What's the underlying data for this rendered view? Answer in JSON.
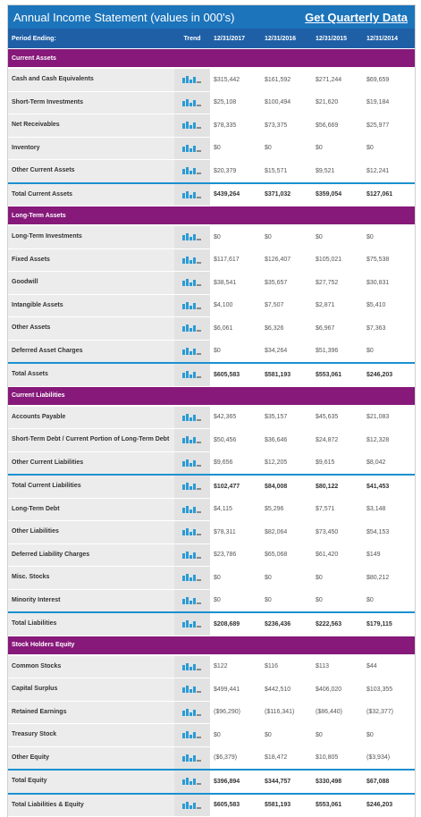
{
  "header": {
    "title": "Annual Income Statement (values in 000's)",
    "link": "Get Quarterly Data"
  },
  "columns": [
    "Period Ending:",
    "Trend",
    "12/31/2017",
    "12/31/2016",
    "12/31/2015",
    "12/31/2014"
  ],
  "sections": [
    {
      "title": "Current Assets",
      "rows": [
        {
          "label": "Cash and Cash Equivalents",
          "values": [
            "$315,442",
            "$161,592",
            "$271,244",
            "$69,659"
          ]
        },
        {
          "label": "Short-Term Investments",
          "values": [
            "$25,108",
            "$100,494",
            "$21,620",
            "$19,184"
          ]
        },
        {
          "label": "Net Receivables",
          "values": [
            "$78,335",
            "$73,375",
            "$56,669",
            "$25,977"
          ]
        },
        {
          "label": "Inventory",
          "values": [
            "$0",
            "$0",
            "$0",
            "$0"
          ]
        },
        {
          "label": "Other Current Assets",
          "values": [
            "$20,379",
            "$15,571",
            "$9,521",
            "$12,241"
          ]
        },
        {
          "label": "Total Current Assets",
          "values": [
            "$439,264",
            "$371,032",
            "$359,054",
            "$127,061"
          ],
          "total": true
        }
      ]
    },
    {
      "title": "Long-Term Assets",
      "rows": [
        {
          "label": "Long-Term Investments",
          "values": [
            "$0",
            "$0",
            "$0",
            "$0"
          ]
        },
        {
          "label": "Fixed Assets",
          "values": [
            "$117,617",
            "$126,407",
            "$105,021",
            "$75,538"
          ]
        },
        {
          "label": "Goodwill",
          "values": [
            "$38,541",
            "$35,657",
            "$27,752",
            "$30,831"
          ]
        },
        {
          "label": "Intangible Assets",
          "values": [
            "$4,100",
            "$7,507",
            "$2,871",
            "$5,410"
          ]
        },
        {
          "label": "Other Assets",
          "values": [
            "$6,061",
            "$6,326",
            "$6,967",
            "$7,363"
          ]
        },
        {
          "label": "Deferred Asset Charges",
          "values": [
            "$0",
            "$34,264",
            "$51,396",
            "$0"
          ]
        },
        {
          "label": "Total Assets",
          "values": [
            "$605,583",
            "$581,193",
            "$553,061",
            "$246,203"
          ],
          "total": true
        }
      ]
    },
    {
      "title": "Current Liabilities",
      "rows": [
        {
          "label": "Accounts Payable",
          "values": [
            "$42,365",
            "$35,157",
            "$45,635",
            "$21,083"
          ]
        },
        {
          "label": "Short-Term Debt / Current Portion of Long-Term Debt",
          "values": [
            "$50,456",
            "$36,646",
            "$24,872",
            "$12,328"
          ]
        },
        {
          "label": "Other Current Liabilities",
          "values": [
            "$9,656",
            "$12,205",
            "$9,615",
            "$8,042"
          ]
        },
        {
          "label": "Total Current Liabilities",
          "values": [
            "$102,477",
            "$84,008",
            "$80,122",
            "$41,453"
          ],
          "total": true
        },
        {
          "label": "Long-Term Debt",
          "values": [
            "$4,115",
            "$5,296",
            "$7,571",
            "$3,148"
          ]
        },
        {
          "label": "Other Liabilities",
          "values": [
            "$78,311",
            "$82,064",
            "$73,450",
            "$54,153"
          ]
        },
        {
          "label": "Deferred Liability Charges",
          "values": [
            "$23,786",
            "$65,068",
            "$61,420",
            "$149"
          ]
        },
        {
          "label": "Misc. Stocks",
          "values": [
            "$0",
            "$0",
            "$0",
            "$80,212"
          ]
        },
        {
          "label": "Minority Interest",
          "values": [
            "$0",
            "$0",
            "$0",
            "$0"
          ]
        },
        {
          "label": "Total Liabilities",
          "values": [
            "$208,689",
            "$236,436",
            "$222,563",
            "$179,115"
          ],
          "total": true
        }
      ]
    },
    {
      "title": "Stock Holders Equity",
      "rows": [
        {
          "label": "Common Stocks",
          "values": [
            "$122",
            "$116",
            "$113",
            "$44"
          ]
        },
        {
          "label": "Capital Surplus",
          "values": [
            "$499,441",
            "$442,510",
            "$406,020",
            "$103,355"
          ]
        },
        {
          "label": "Retained Earnings",
          "values": [
            "($96,290)",
            "($116,341)",
            "($86,440)",
            "($32,377)"
          ]
        },
        {
          "label": "Treasury Stock",
          "values": [
            "$0",
            "$0",
            "$0",
            "$0"
          ]
        },
        {
          "label": "Other Equity",
          "values": [
            "($6,379)",
            "$18,472",
            "$10,805",
            "($3,934)"
          ]
        },
        {
          "label": "Total Equity",
          "values": [
            "$396,894",
            "$344,757",
            "$330,498",
            "$67,088"
          ],
          "total": true
        },
        {
          "label": "Total Liabilities & Equity",
          "values": [
            "$605,583",
            "$581,193",
            "$553,061",
            "$246,203"
          ],
          "total": true
        }
      ]
    }
  ]
}
